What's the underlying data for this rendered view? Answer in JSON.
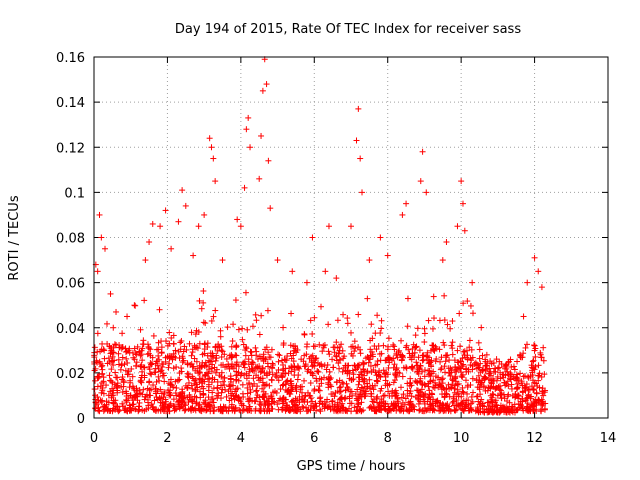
{
  "chart_data": {
    "type": "scatter",
    "title": "Day 194 of 2015, Rate Of TEC Index for receiver sass",
    "xlabel": "GPS time / hours",
    "ylabel": "ROTI / TECUs",
    "xlim": [
      0,
      14
    ],
    "ylim": [
      0,
      0.16
    ],
    "x_ticks": [
      "0",
      "2",
      "4",
      "6",
      "8",
      "10",
      "12",
      "14"
    ],
    "y_ticks": [
      "0",
      "0.02",
      "0.04",
      "0.06",
      "0.08",
      "0.1",
      "0.12",
      "0.14",
      "0.16"
    ],
    "grid": true,
    "marker": "plus",
    "marker_color": "#ff0000",
    "x_data_end": 12.3,
    "series": [
      {
        "name": "ROTI",
        "points": [
          [
            0.05,
            0.068
          ],
          [
            0.1,
            0.065
          ],
          [
            0.15,
            0.09
          ],
          [
            0.2,
            0.08
          ],
          [
            0.3,
            0.075
          ],
          [
            0.45,
            0.055
          ],
          [
            0.6,
            0.047
          ],
          [
            0.9,
            0.045
          ],
          [
            1.1,
            0.05
          ],
          [
            1.4,
            0.07
          ],
          [
            1.5,
            0.078
          ],
          [
            1.6,
            0.086
          ],
          [
            1.8,
            0.085
          ],
          [
            1.95,
            0.092
          ],
          [
            2.1,
            0.075
          ],
          [
            2.3,
            0.087
          ],
          [
            2.4,
            0.101
          ],
          [
            2.5,
            0.094
          ],
          [
            2.7,
            0.072
          ],
          [
            2.85,
            0.085
          ],
          [
            3.0,
            0.09
          ],
          [
            3.15,
            0.124
          ],
          [
            3.2,
            0.12
          ],
          [
            3.25,
            0.115
          ],
          [
            3.3,
            0.105
          ],
          [
            3.5,
            0.07
          ],
          [
            3.9,
            0.088
          ],
          [
            4.0,
            0.085
          ],
          [
            4.1,
            0.102
          ],
          [
            4.15,
            0.128
          ],
          [
            4.2,
            0.133
          ],
          [
            4.25,
            0.12
          ],
          [
            4.5,
            0.106
          ],
          [
            4.55,
            0.125
          ],
          [
            4.6,
            0.145
          ],
          [
            4.65,
            0.159
          ],
          [
            4.7,
            0.148
          ],
          [
            4.75,
            0.114
          ],
          [
            4.8,
            0.093
          ],
          [
            5.0,
            0.07
          ],
          [
            5.4,
            0.065
          ],
          [
            5.8,
            0.06
          ],
          [
            5.95,
            0.08
          ],
          [
            6.3,
            0.065
          ],
          [
            6.4,
            0.085
          ],
          [
            6.6,
            0.062
          ],
          [
            7.0,
            0.085
          ],
          [
            7.15,
            0.123
          ],
          [
            7.2,
            0.137
          ],
          [
            7.25,
            0.115
          ],
          [
            7.3,
            0.1
          ],
          [
            7.5,
            0.07
          ],
          [
            7.8,
            0.08
          ],
          [
            8.0,
            0.072
          ],
          [
            8.4,
            0.09
          ],
          [
            8.5,
            0.095
          ],
          [
            8.9,
            0.105
          ],
          [
            8.95,
            0.118
          ],
          [
            9.05,
            0.1
          ],
          [
            9.5,
            0.07
          ],
          [
            9.6,
            0.078
          ],
          [
            9.9,
            0.085
          ],
          [
            10.0,
            0.105
          ],
          [
            10.05,
            0.095
          ],
          [
            10.1,
            0.083
          ],
          [
            10.3,
            0.06
          ],
          [
            10.7,
            0.028
          ],
          [
            11.0,
            0.022
          ],
          [
            11.3,
            0.025
          ],
          [
            11.7,
            0.045
          ],
          [
            11.8,
            0.06
          ],
          [
            12.0,
            0.071
          ],
          [
            12.1,
            0.065
          ],
          [
            12.2,
            0.058
          ]
        ]
      }
    ]
  }
}
